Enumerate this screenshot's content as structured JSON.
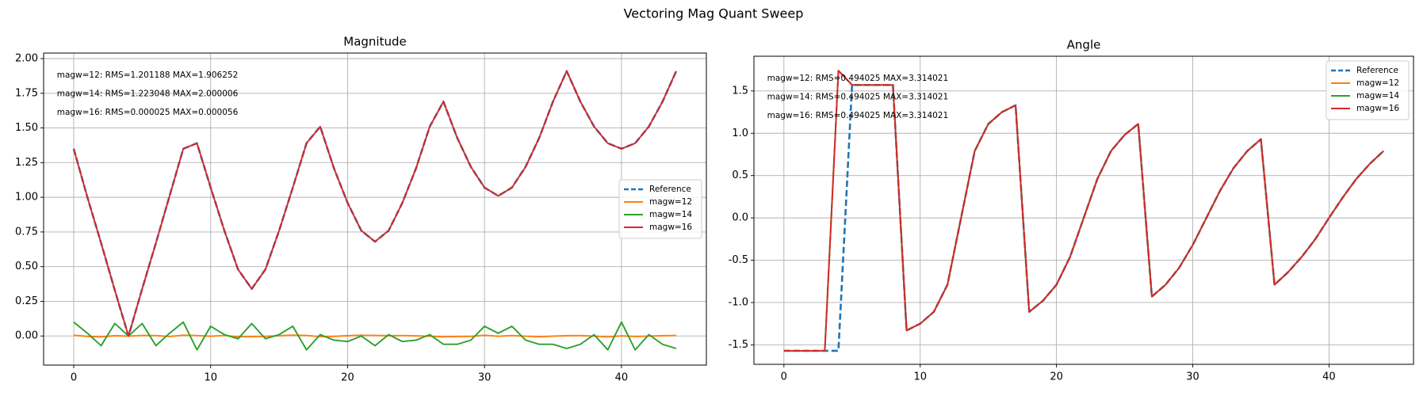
{
  "title": "Vectoring Mag Quant Sweep",
  "chart_data": [
    {
      "type": "line",
      "title": "Magnitude",
      "x": [
        0,
        1,
        2,
        3,
        4,
        5,
        6,
        7,
        8,
        9,
        10,
        11,
        12,
        13,
        14,
        15,
        16,
        17,
        18,
        19,
        20,
        21,
        22,
        23,
        24,
        25,
        26,
        27,
        28,
        29,
        30,
        31,
        32,
        33,
        34,
        35,
        36,
        37,
        38,
        39,
        40,
        41,
        42,
        43,
        44
      ],
      "series": [
        {
          "name": "Reference",
          "color": "#1f77b4",
          "linestyle": "dashed",
          "values": [
            1.35,
            1.0,
            0.67,
            0.33,
            0.0,
            0.34,
            0.67,
            1.01,
            1.35,
            1.39,
            1.07,
            0.76,
            0.48,
            0.34,
            0.48,
            0.76,
            1.07,
            1.39,
            1.51,
            1.21,
            0.96,
            0.76,
            0.68,
            0.76,
            0.96,
            1.21,
            1.51,
            1.69,
            1.43,
            1.22,
            1.07,
            1.01,
            1.07,
            1.22,
            1.43,
            1.69,
            1.91,
            1.69,
            1.51,
            1.39,
            1.35,
            1.39,
            1.51,
            1.69,
            1.91
          ]
        },
        {
          "name": "magw=12",
          "color": "#ff7f0e",
          "linestyle": "solid",
          "values": [
            0.005,
            -0.003,
            -0.007,
            0.002,
            -0.001,
            0.004,
            0.003,
            -0.004,
            0.006,
            0.003,
            -0.002,
            0.004,
            -0.006,
            -0.005,
            -0.003,
            0.002,
            0.006,
            0.004,
            -0.005,
            -0.003,
            0.002,
            0.005,
            0.004,
            0.002,
            0.003,
            0.001,
            -0.002,
            -0.006,
            -0.004,
            -0.003,
            0.005,
            -0.002,
            0.003,
            -0.002,
            -0.006,
            -0.001,
            0.002,
            0.003,
            -0.001,
            -0.007,
            0.001,
            -0.004,
            -0.001,
            0.002,
            0.004
          ]
        },
        {
          "name": "magw=14",
          "color": "#2ca02c",
          "linestyle": "solid",
          "values": [
            0.1,
            0.02,
            -0.07,
            0.09,
            0.0,
            0.09,
            -0.07,
            0.02,
            0.1,
            -0.1,
            0.07,
            0.01,
            -0.02,
            0.09,
            -0.02,
            0.01,
            0.07,
            -0.1,
            0.01,
            -0.03,
            -0.04,
            0.0,
            -0.07,
            0.01,
            -0.04,
            -0.03,
            0.01,
            -0.06,
            -0.06,
            -0.03,
            0.07,
            0.02,
            0.07,
            -0.03,
            -0.06,
            -0.06,
            -0.09,
            -0.06,
            0.01,
            -0.1,
            0.1,
            -0.1,
            0.01,
            -0.06,
            -0.09
          ]
        },
        {
          "name": "magw=16",
          "color": "#d62728",
          "linestyle": "solid",
          "values": [
            1.35,
            1.0,
            0.67,
            0.33,
            0.0,
            0.34,
            0.67,
            1.01,
            1.35,
            1.39,
            1.07,
            0.76,
            0.48,
            0.34,
            0.48,
            0.76,
            1.07,
            1.39,
            1.51,
            1.21,
            0.96,
            0.76,
            0.68,
            0.76,
            0.96,
            1.21,
            1.51,
            1.69,
            1.43,
            1.22,
            1.07,
            1.01,
            1.07,
            1.22,
            1.43,
            1.69,
            1.91,
            1.69,
            1.51,
            1.39,
            1.35,
            1.39,
            1.51,
            1.69,
            1.91
          ]
        }
      ],
      "annotations": [
        "magw=12: RMS=1.201188 MAX=1.906252",
        "magw=14: RMS=1.223048 MAX=2.000006",
        "magw=16: RMS=0.000025 MAX=0.000056"
      ],
      "xlim": [
        -2.2,
        46.2
      ],
      "xticks": [
        0,
        10,
        20,
        30,
        40
      ],
      "ylim": [
        -0.21,
        2.04
      ],
      "yticks": [
        {
          "value": 0,
          "label": "0.00"
        },
        0.25,
        {
          "value": 0.5,
          "label": "0.50"
        },
        0.75,
        {
          "value": 1,
          "label": "1.00"
        },
        1.25,
        {
          "value": 1.5,
          "label": "1.50"
        },
        1.75,
        {
          "value": 2,
          "label": "2.00"
        }
      ],
      "grid": true,
      "legend_loc": "center right"
    },
    {
      "type": "line",
      "title": "Angle",
      "x": [
        0,
        1,
        2,
        3,
        4,
        5,
        6,
        7,
        8,
        9,
        10,
        11,
        12,
        13,
        14,
        15,
        16,
        17,
        18,
        19,
        20,
        21,
        22,
        23,
        24,
        25,
        26,
        27,
        28,
        29,
        30,
        31,
        32,
        33,
        34,
        35,
        36,
        37,
        38,
        39,
        40,
        41,
        42,
        43,
        44
      ],
      "series": [
        {
          "name": "Reference",
          "color": "#1f77b4",
          "linestyle": "dashed",
          "values": [
            -1.57,
            -1.57,
            -1.57,
            -1.57,
            -1.57,
            1.57,
            1.57,
            1.57,
            1.57,
            -1.33,
            -1.25,
            -1.11,
            -0.79,
            0.0,
            0.79,
            1.11,
            1.25,
            1.33,
            -1.11,
            -0.98,
            -0.79,
            -0.46,
            0.0,
            0.46,
            0.79,
            0.98,
            1.11,
            -0.93,
            -0.79,
            -0.59,
            -0.32,
            0.0,
            0.32,
            0.59,
            0.79,
            0.93,
            -0.79,
            -0.64,
            -0.46,
            -0.25,
            0.0,
            0.24,
            0.46,
            0.64,
            0.79
          ]
        },
        {
          "name": "magw=12",
          "color": "#ff7f0e",
          "linestyle": "solid",
          "values": [
            -1.57,
            -1.57,
            -1.57,
            -1.57,
            1.74,
            1.57,
            1.57,
            1.57,
            1.57,
            -1.33,
            -1.25,
            -1.11,
            -0.79,
            0.0,
            0.79,
            1.11,
            1.25,
            1.33,
            -1.11,
            -0.98,
            -0.79,
            -0.46,
            0.0,
            0.46,
            0.79,
            0.98,
            1.11,
            -0.93,
            -0.79,
            -0.59,
            -0.32,
            0.0,
            0.32,
            0.59,
            0.79,
            0.93,
            -0.79,
            -0.64,
            -0.46,
            -0.25,
            0.0,
            0.24,
            0.46,
            0.64,
            0.79
          ]
        },
        {
          "name": "magw=14",
          "color": "#2ca02c",
          "linestyle": "solid",
          "values": [
            -1.57,
            -1.57,
            -1.57,
            -1.57,
            1.74,
            1.57,
            1.57,
            1.57,
            1.57,
            -1.33,
            -1.25,
            -1.11,
            -0.79,
            0.0,
            0.79,
            1.11,
            1.25,
            1.33,
            -1.11,
            -0.98,
            -0.79,
            -0.46,
            0.0,
            0.46,
            0.79,
            0.98,
            1.11,
            -0.93,
            -0.79,
            -0.59,
            -0.32,
            0.0,
            0.32,
            0.59,
            0.79,
            0.93,
            -0.79,
            -0.64,
            -0.46,
            -0.25,
            0.0,
            0.24,
            0.46,
            0.64,
            0.79
          ]
        },
        {
          "name": "magw=16",
          "color": "#d62728",
          "linestyle": "solid",
          "values": [
            -1.57,
            -1.57,
            -1.57,
            -1.57,
            1.74,
            1.57,
            1.57,
            1.57,
            1.57,
            -1.33,
            -1.25,
            -1.11,
            -0.79,
            0.0,
            0.79,
            1.11,
            1.25,
            1.33,
            -1.11,
            -0.98,
            -0.79,
            -0.46,
            0.0,
            0.46,
            0.79,
            0.98,
            1.11,
            -0.93,
            -0.79,
            -0.59,
            -0.32,
            0.0,
            0.32,
            0.59,
            0.79,
            0.93,
            -0.79,
            -0.64,
            -0.46,
            -0.25,
            0.0,
            0.24,
            0.46,
            0.64,
            0.79
          ]
        }
      ],
      "annotations": [
        "magw=12: RMS=0.494025 MAX=3.314021",
        "magw=14: RMS=0.494025 MAX=3.314021",
        "magw=16: RMS=0.494025 MAX=3.314021"
      ],
      "xlim": [
        -2.2,
        46.2
      ],
      "xticks": [
        0,
        10,
        20,
        30,
        40
      ],
      "ylim": [
        -1.73,
        1.91
      ],
      "yticks": [
        -1.5,
        {
          "value": -1,
          "label": "-1.0"
        },
        -0.5,
        {
          "value": 0,
          "label": "0.0"
        },
        0.5,
        {
          "value": 1,
          "label": "1.0"
        },
        1.5
      ],
      "grid": true,
      "legend_loc": "upper right"
    }
  ]
}
